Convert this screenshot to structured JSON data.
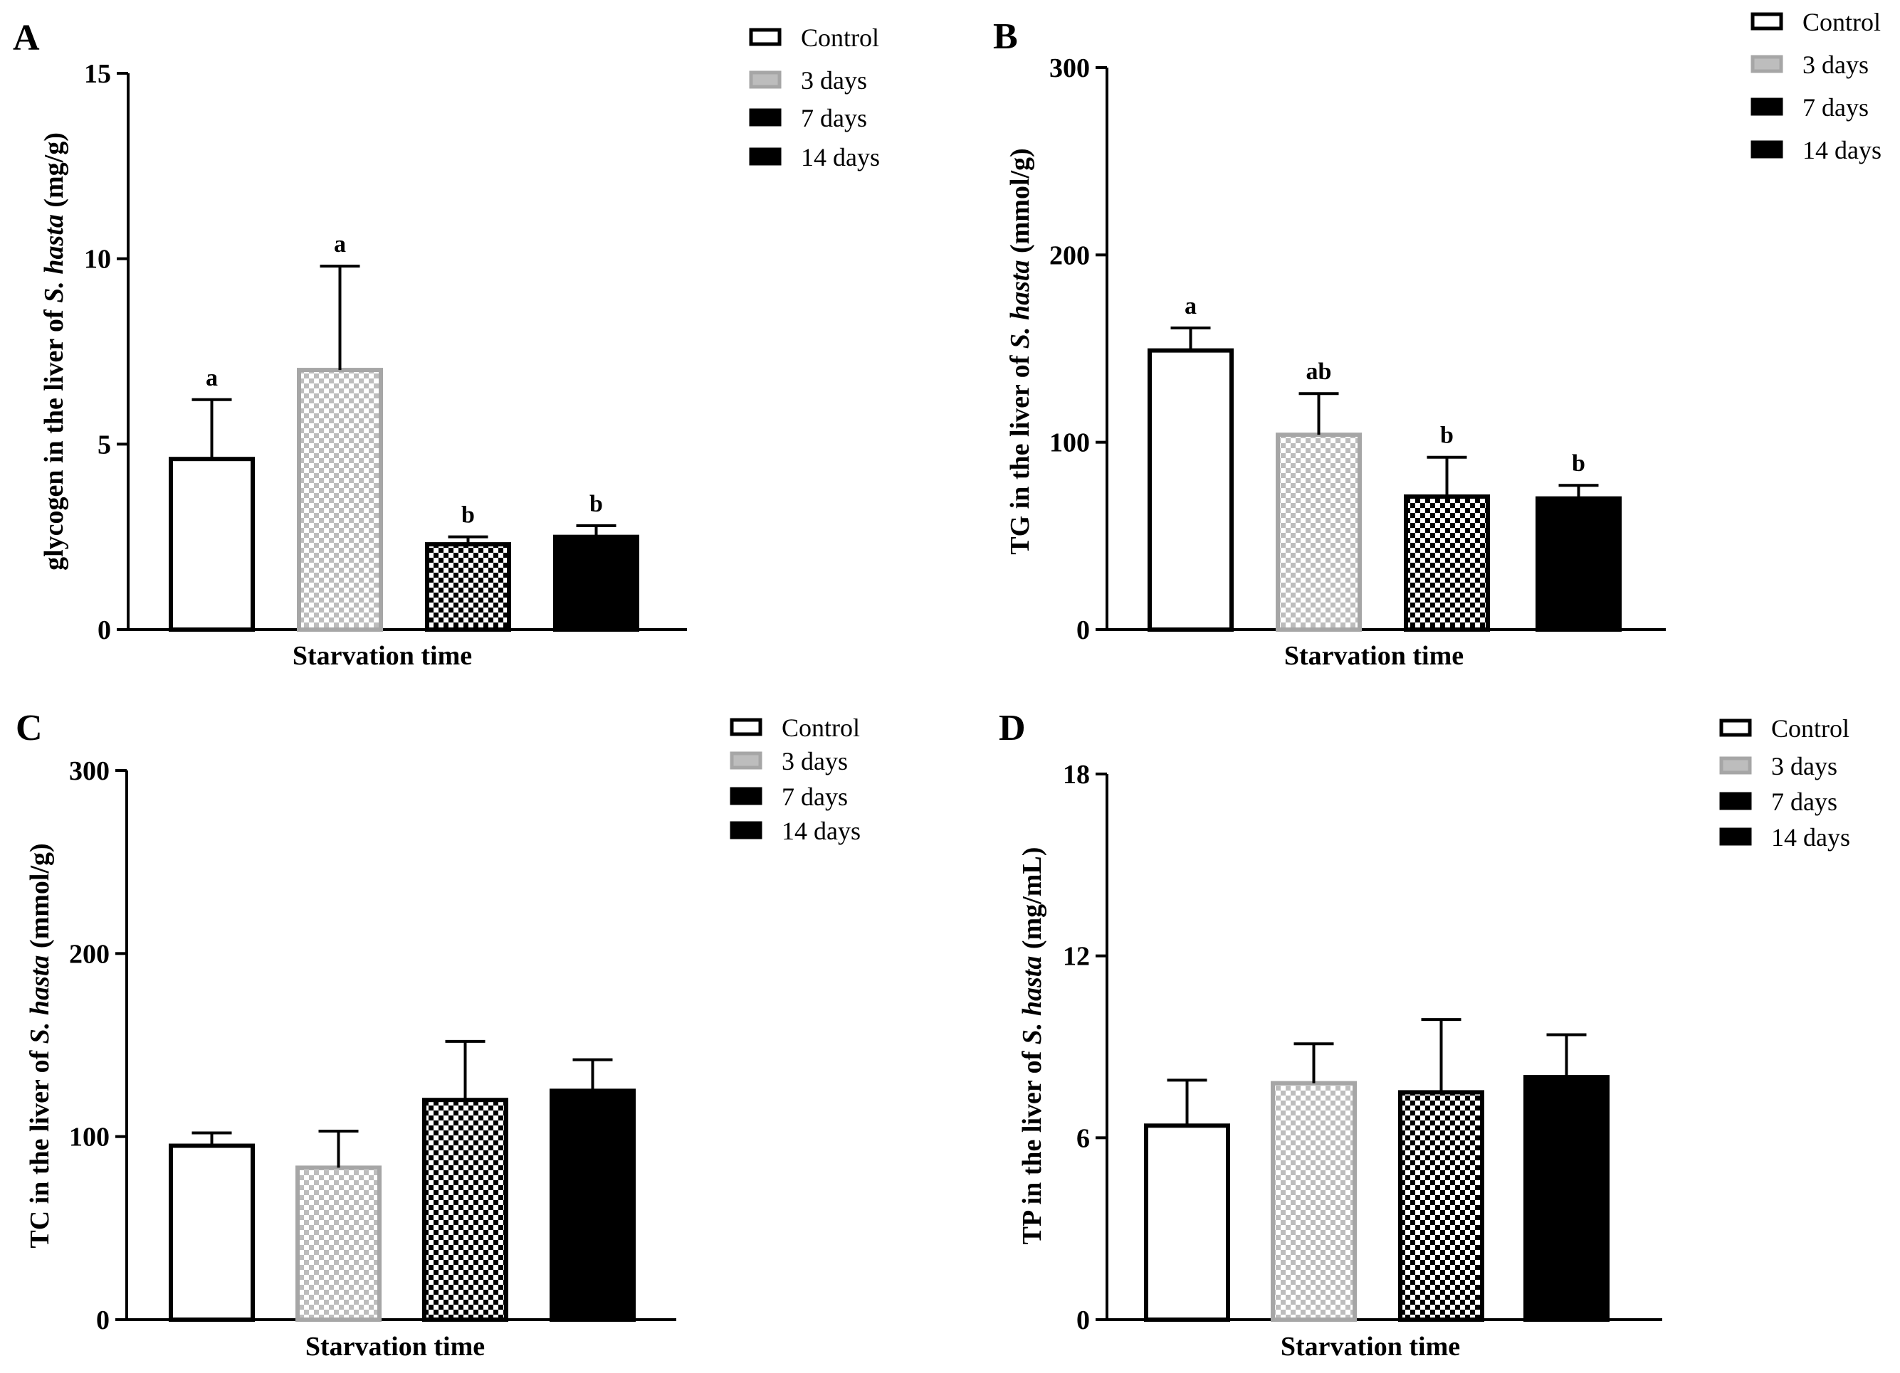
{
  "colors": {
    "ink": "#000000",
    "control_fill": "#ffffff",
    "day3_fill": "#bdbdbd",
    "day3_stroke": "#a6a6a6",
    "day7_fill": "#000000",
    "day14_fill": "#000000"
  },
  "legend_items": [
    "Control",
    "3 days",
    "7 days",
    "14 days"
  ],
  "chart_data": [
    {
      "type": "bar",
      "panel": "A",
      "categories": [
        "Control",
        "3 days",
        "7 days",
        "14 days"
      ],
      "values": [
        4.6,
        7.0,
        2.3,
        2.5
      ],
      "errors": [
        1.6,
        2.8,
        0.2,
        0.3
      ],
      "significance": [
        "a",
        "a",
        "b",
        "b"
      ],
      "ylim": [
        0,
        15
      ],
      "yticks": [
        "0",
        "5",
        "10",
        "15"
      ],
      "ylabel_prefix": "glycogen in the liver of ",
      "ylabel_species": "S. hasta",
      "ylabel_unit": " (mg/g)",
      "xlabel": "Starvation time",
      "legend": [
        "Control",
        "3 days",
        "7 days",
        "14 days"
      ]
    },
    {
      "type": "bar",
      "panel": "B",
      "categories": [
        "Control",
        "3 days",
        "7 days",
        "14 days"
      ],
      "values": [
        149,
        104,
        71,
        70
      ],
      "errors": [
        12,
        22,
        21,
        7
      ],
      "significance": [
        "a",
        "ab",
        "b",
        "b"
      ],
      "ylim": [
        0,
        300
      ],
      "yticks": [
        "0",
        "100",
        "200",
        "300"
      ],
      "ylabel_prefix": "TG in the liver of ",
      "ylabel_species": "S. hasta",
      "ylabel_unit": " (mmol/g)",
      "xlabel": "Starvation time",
      "legend": [
        "Control",
        "3 days",
        "7 days",
        "14 days"
      ]
    },
    {
      "type": "bar",
      "panel": "C",
      "categories": [
        "Control",
        "3 days",
        "7 days",
        "14 days"
      ],
      "values": [
        95,
        83,
        120,
        125
      ],
      "errors": [
        7,
        20,
        32,
        17
      ],
      "significance": [
        "",
        "",
        "",
        ""
      ],
      "ylim": [
        0,
        300
      ],
      "yticks": [
        "0",
        "100",
        "200",
        "300"
      ],
      "ylabel_prefix": "TC in the liver of ",
      "ylabel_species": "S. hasta",
      "ylabel_unit": " (mmol/g)",
      "xlabel": "Starvation time",
      "legend": [
        "Control",
        "3 days",
        "7 days",
        "14 days"
      ]
    },
    {
      "type": "bar",
      "panel": "D",
      "categories": [
        "Control",
        "3 days",
        "7 days",
        "14 days"
      ],
      "values": [
        6.4,
        7.8,
        7.5,
        8.0
      ],
      "errors": [
        1.5,
        1.3,
        2.4,
        1.4
      ],
      "significance": [
        "",
        "",
        "",
        ""
      ],
      "ylim": [
        0,
        18
      ],
      "yticks": [
        "0",
        "6",
        "12",
        "18"
      ],
      "ylabel_prefix": "TP in the liver of ",
      "ylabel_species": "S. hasta",
      "ylabel_unit": " (mg/mL)",
      "xlabel": "Starvation time",
      "legend": [
        "Control",
        "3 days",
        "7 days",
        "14 days"
      ]
    }
  ]
}
